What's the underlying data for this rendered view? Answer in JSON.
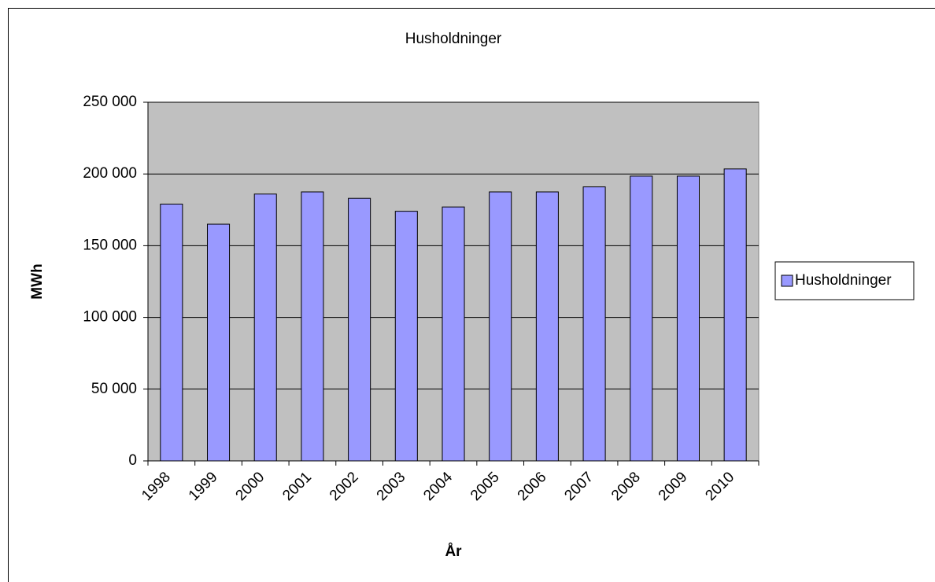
{
  "chart_data": {
    "type": "bar",
    "title": "Husholdninger",
    "x_label": "År",
    "y_label": "MWh",
    "categories": [
      "1998",
      "1999",
      "2000",
      "2001",
      "2002",
      "2003",
      "2004",
      "2005",
      "2006",
      "2007",
      "2008",
      "2009",
      "2010"
    ],
    "series": [
      {
        "name": "Husholdninger",
        "color": "#9999ff",
        "values": [
          179000,
          165000,
          186000,
          187500,
          183000,
          174000,
          177000,
          187500,
          187500,
          191000,
          198500,
          198500,
          203500
        ]
      }
    ],
    "ylim": [
      0,
      250000
    ],
    "yticks": [
      0,
      {
        "value": 50000,
        "label": "50 000"
      },
      {
        "value": 100000,
        "label": "100 000"
      },
      {
        "value": 150000,
        "label": "150 000"
      },
      {
        "value": 200000,
        "label": "200 000"
      },
      {
        "value": 250000,
        "label": "250 000"
      }
    ],
    "grid": true,
    "legend": "right",
    "plot_background": "#c0c0c0"
  }
}
